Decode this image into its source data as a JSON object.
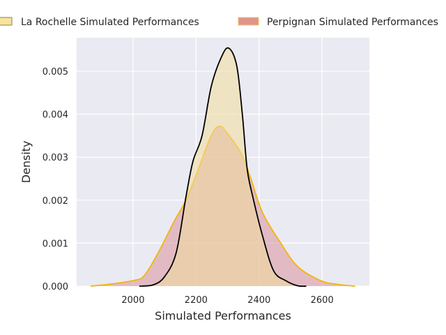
{
  "chart_data": {
    "type": "area",
    "title": "",
    "xlabel": "Simulated Performances",
    "ylabel": "Density",
    "xlim": [
      1821,
      2750
    ],
    "ylim": [
      0,
      0.00578
    ],
    "xticks": [
      2000,
      2200,
      2400,
      2600
    ],
    "xtick_labels": [
      "2000",
      "2200",
      "2400",
      "2600"
    ],
    "yticks": [
      0,
      0.001,
      0.002,
      0.003,
      0.004,
      0.005
    ],
    "ytick_labels": [
      "0.000",
      "0.001",
      "0.002",
      "0.003",
      "0.004",
      "0.005"
    ],
    "grid": true,
    "legend_placement": "top, outside plot",
    "series": [
      {
        "name": "Perpignan Simulated Performances",
        "fill": "#d98a94",
        "line": "#f2b705",
        "x": [
          1865,
          1931,
          2000,
          2035,
          2080,
          2130,
          2168,
          2203,
          2248,
          2274,
          2300,
          2345,
          2373,
          2411,
          2468,
          2522,
          2595,
          2650,
          2705
        ],
        "y": [
          0,
          5e-05,
          0.00013,
          0.00024,
          0.00078,
          0.0015,
          0.002,
          0.00264,
          0.0035,
          0.00372,
          0.00355,
          0.00306,
          0.00252,
          0.00171,
          0.00101,
          0.00046,
          0.00013,
          4e-05,
          0
        ]
      },
      {
        "name": "La Rochelle Simulated Performances",
        "fill": "#f0dc9a",
        "line": "#000000",
        "x": [
          2020,
          2064,
          2100,
          2137,
          2168,
          2190,
          2219,
          2248,
          2278,
          2303,
          2329,
          2347,
          2362,
          2380,
          2411,
          2446,
          2484,
          2522,
          2550
        ],
        "y": [
          0,
          3e-05,
          0.00022,
          0.00078,
          0.00208,
          0.0029,
          0.0035,
          0.00464,
          0.00529,
          0.00554,
          0.00513,
          0.00399,
          0.00274,
          0.00208,
          0.00117,
          0.00036,
          0.00013,
          1e-05,
          0
        ]
      }
    ]
  }
}
